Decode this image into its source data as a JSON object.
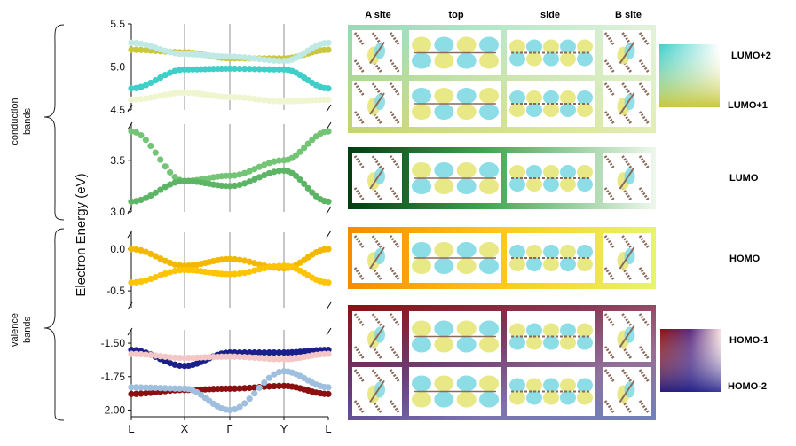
{
  "group_labels": {
    "conduction": [
      "conduction",
      "bands"
    ],
    "valence": [
      "valence",
      "bands"
    ]
  },
  "y_axis_label": "Electron Energy (eV)",
  "kpoints": [
    "L",
    "X",
    "Γ",
    "Y",
    "L"
  ],
  "column_headers": [
    "A site",
    "top",
    "side",
    "B site"
  ],
  "orbital_labels": {
    "lumo2": "LUMO+2",
    "lumo1": "LUMO+1",
    "lumo": "LUMO",
    "homo": "HOMO",
    "homo1": "HOMO-1",
    "homo2": "HOMO-2"
  },
  "colors": {
    "lumo2": "#3fcfc8",
    "lumo1": "#c8c83a",
    "lumo": "#1f6e2a",
    "homo": "#f5a500",
    "homo1": "#8a1010",
    "homo2": "#1a1f8a",
    "isosurface_pos": "#7fd9e3",
    "isosurface_neg": "#e6e67a"
  },
  "chart_data": {
    "type": "line",
    "x_ticks": [
      "L",
      "X",
      "Γ",
      "Y",
      "L"
    ],
    "ylabel": "Electron Energy (eV)",
    "panels": [
      {
        "name": "conduction-upper",
        "ylim": [
          4.5,
          5.5
        ],
        "yticks": [
          4.5,
          5.0,
          5.5
        ],
        "series": [
          {
            "color": "#c8c83a",
            "values": [
              5.2,
              5.17,
              5.1,
              5.1,
              5.2
            ]
          },
          {
            "color": "#bfe9e5",
            "values": [
              5.28,
              5.15,
              5.12,
              5.07,
              5.28
            ]
          },
          {
            "color": "#3fcfc8",
            "values": [
              4.75,
              4.97,
              4.98,
              4.97,
              4.75
            ]
          },
          {
            "color": "#eef5cf",
            "values": [
              4.62,
              4.7,
              4.65,
              4.6,
              4.62
            ]
          }
        ]
      },
      {
        "name": "conduction-lower",
        "ylim": [
          3.0,
          3.85
        ],
        "yticks": [
          3.0,
          3.5
        ],
        "series": [
          {
            "color": "#74c476",
            "values": [
              3.78,
              3.3,
              3.35,
              3.5,
              3.78
            ]
          },
          {
            "color": "#5cb565",
            "values": [
              3.1,
              3.3,
              3.25,
              3.4,
              3.1
            ]
          }
        ]
      },
      {
        "name": "homo",
        "ylim": [
          -0.7,
          0.2
        ],
        "yticks": [
          -0.5,
          0.0
        ],
        "series": [
          {
            "color": "#f5b800",
            "values": [
              0.0,
              -0.2,
              -0.12,
              -0.23,
              0.0
            ]
          },
          {
            "color": "#ffc400",
            "values": [
              -0.4,
              -0.25,
              -0.3,
              -0.2,
              -0.4
            ]
          }
        ]
      },
      {
        "name": "valence-lower",
        "ylim": [
          -2.05,
          -1.4
        ],
        "yticks": [
          -1.5,
          -1.75,
          -2.0
        ],
        "series": [
          {
            "color": "#1a1f8a",
            "values": [
              -1.55,
              -1.67,
              -1.57,
              -1.57,
              -1.55
            ]
          },
          {
            "color": "#f4c6c6",
            "values": [
              -1.58,
              -1.61,
              -1.6,
              -1.62,
              -1.58
            ]
          },
          {
            "color": "#8a1010",
            "values": [
              -1.88,
              -1.85,
              -1.84,
              -1.82,
              -1.88
            ]
          },
          {
            "color": "#9fbfdf",
            "values": [
              -1.83,
              -1.84,
              -2.0,
              -1.71,
              -1.83
            ]
          }
        ]
      }
    ]
  }
}
